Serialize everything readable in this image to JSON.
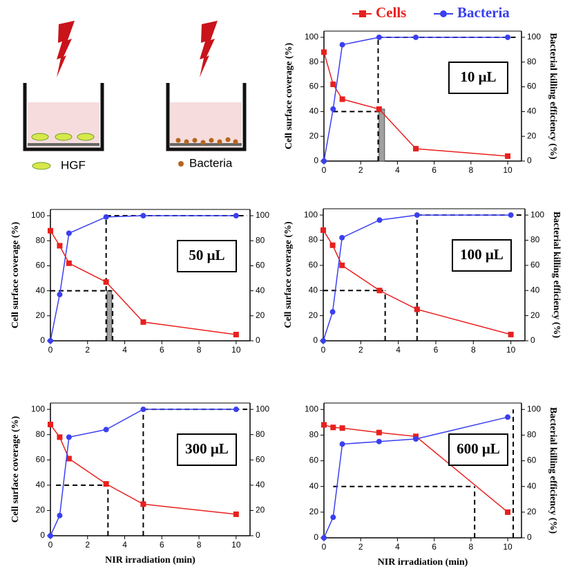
{
  "illustration": {
    "labels": [
      "HGF",
      "Bacteria"
    ]
  },
  "chart_data": [
    {
      "type": "line",
      "label": "10 μL",
      "x": [
        0,
        0.5,
        1,
        3,
        5,
        10
      ],
      "series": [
        {
          "name": "Cells",
          "color": "#e8201e",
          "values": [
            88,
            62,
            50,
            42,
            10,
            4
          ]
        },
        {
          "name": "Bacteria",
          "color": "#3a3ff0",
          "axis": "y2",
          "values": [
            0,
            42,
            94,
            100,
            100,
            100
          ]
        }
      ],
      "xlim": [
        0,
        10.75
      ],
      "xticks": [
        0,
        2,
        4,
        6,
        8,
        10
      ],
      "ylim": [
        0,
        105
      ],
      "yticks": [
        0,
        20,
        40,
        60,
        80,
        100
      ],
      "y2lim": [
        0,
        105
      ],
      "y2ticks": [
        0,
        20,
        40,
        60,
        80,
        100
      ],
      "ylabel": "Cell surface coverage (%)",
      "y2label": "Bacterial killing efficiency (%)",
      "guides": [
        [
          0.5,
          40,
          3,
          40
        ],
        [
          2.95,
          0,
          2.95,
          100
        ],
        [
          2.95,
          100,
          10.6,
          100
        ]
      ],
      "shade": [
        3,
        3.3,
        42
      ]
    },
    {
      "type": "line",
      "label": "50 μL",
      "x": [
        0,
        0.5,
        1,
        3,
        5,
        10
      ],
      "series": [
        {
          "color": "#e8201e",
          "values": [
            88,
            76,
            62,
            47,
            15,
            5
          ]
        },
        {
          "color": "#3a3ff0",
          "axis": "y2",
          "values": [
            0,
            37,
            86,
            99,
            100,
            100
          ]
        }
      ],
      "xlim": [
        0,
        10.75
      ],
      "xticks": [
        0,
        2,
        4,
        6,
        8,
        10
      ],
      "ylim": [
        0,
        105
      ],
      "yticks": [
        0,
        20,
        40,
        60,
        80,
        100
      ],
      "y2lim": [
        0,
        105
      ],
      "y2ticks": [
        0,
        20,
        40,
        60,
        80,
        100
      ],
      "ylabel": "Cell surface coverage (%)",
      "guides": [
        [
          0,
          40,
          3.3,
          40
        ],
        [
          3,
          0,
          3,
          100
        ],
        [
          3,
          100,
          10.6,
          100
        ],
        [
          3.35,
          0,
          3.35,
          40
        ]
      ],
      "shade": [
        3.05,
        3.3,
        40
      ]
    },
    {
      "type": "line",
      "label": "100 μL",
      "x": [
        0,
        0.5,
        1,
        3,
        5,
        10
      ],
      "series": [
        {
          "color": "#e8201e",
          "values": [
            88,
            76,
            60,
            40,
            25,
            5
          ]
        },
        {
          "color": "#3a3ff0",
          "axis": "y2",
          "values": [
            0,
            23,
            82,
            96,
            100,
            100
          ]
        }
      ],
      "xlim": [
        0,
        10.75
      ],
      "xticks": [
        0,
        2,
        4,
        6,
        8,
        10
      ],
      "ylim": [
        0,
        105
      ],
      "yticks": [
        0,
        20,
        40,
        60,
        80,
        100
      ],
      "y2lim": [
        0,
        105
      ],
      "y2ticks": [
        0,
        20,
        40,
        60,
        80,
        100
      ],
      "ylabel": "Cell surface coverage (%)",
      "y2label": "Bacterial killing efficiency (%)",
      "guides": [
        [
          0,
          40,
          3.2,
          40
        ],
        [
          3.3,
          0,
          3.3,
          40
        ],
        [
          5,
          0,
          5,
          100
        ],
        [
          5,
          100,
          10.6,
          100
        ]
      ]
    },
    {
      "type": "line",
      "label": "300 μL",
      "x": [
        0,
        0.5,
        1,
        3,
        5,
        10
      ],
      "series": [
        {
          "color": "#e8201e",
          "values": [
            88,
            78,
            61,
            41,
            25,
            17
          ]
        },
        {
          "color": "#3a3ff0",
          "axis": "y2",
          "values": [
            0,
            16,
            78,
            84,
            100,
            100
          ]
        }
      ],
      "xlim": [
        0,
        10.75
      ],
      "xticks": [
        0,
        2,
        4,
        6,
        8,
        10
      ],
      "ylim": [
        0,
        105
      ],
      "yticks": [
        0,
        20,
        40,
        60,
        80,
        100
      ],
      "y2lim": [
        0,
        105
      ],
      "y2ticks": [
        0,
        20,
        40,
        60,
        80,
        100
      ],
      "ylabel": "Cell surface coverage (%)",
      "xlabel": "NIR irradiation (min)",
      "guides": [
        [
          0.3,
          40,
          3.1,
          40
        ],
        [
          3.1,
          0,
          3.1,
          40
        ],
        [
          5,
          0,
          5,
          100
        ],
        [
          5,
          100,
          10.6,
          100
        ]
      ]
    },
    {
      "type": "line",
      "label": "600 μL",
      "x": [
        0,
        0.5,
        1,
        3,
        5,
        10
      ],
      "series": [
        {
          "color": "#e8201e",
          "values": [
            88,
            86,
            85.5,
            82,
            79,
            20
          ]
        },
        {
          "color": "#3a3ff0",
          "axis": "y2",
          "values": [
            0,
            16,
            73,
            75,
            77,
            94
          ]
        }
      ],
      "xlim": [
        0,
        10.75
      ],
      "xticks": [
        0,
        2,
        4,
        6,
        8,
        10
      ],
      "ylim": [
        0,
        105
      ],
      "yticks": [
        0,
        20,
        40,
        60,
        80,
        100
      ],
      "y2lim": [
        0,
        105
      ],
      "y2ticks": [
        0,
        20,
        40,
        60,
        80,
        100
      ],
      "y2label": "Bacterial killing efficiency (%)",
      "xlabel": "NIR irradiation (min)",
      "guides": [
        [
          0.5,
          40,
          8.2,
          40
        ],
        [
          8.2,
          0,
          8.2,
          40
        ],
        [
          10.3,
          0,
          10.3,
          100
        ]
      ]
    }
  ]
}
